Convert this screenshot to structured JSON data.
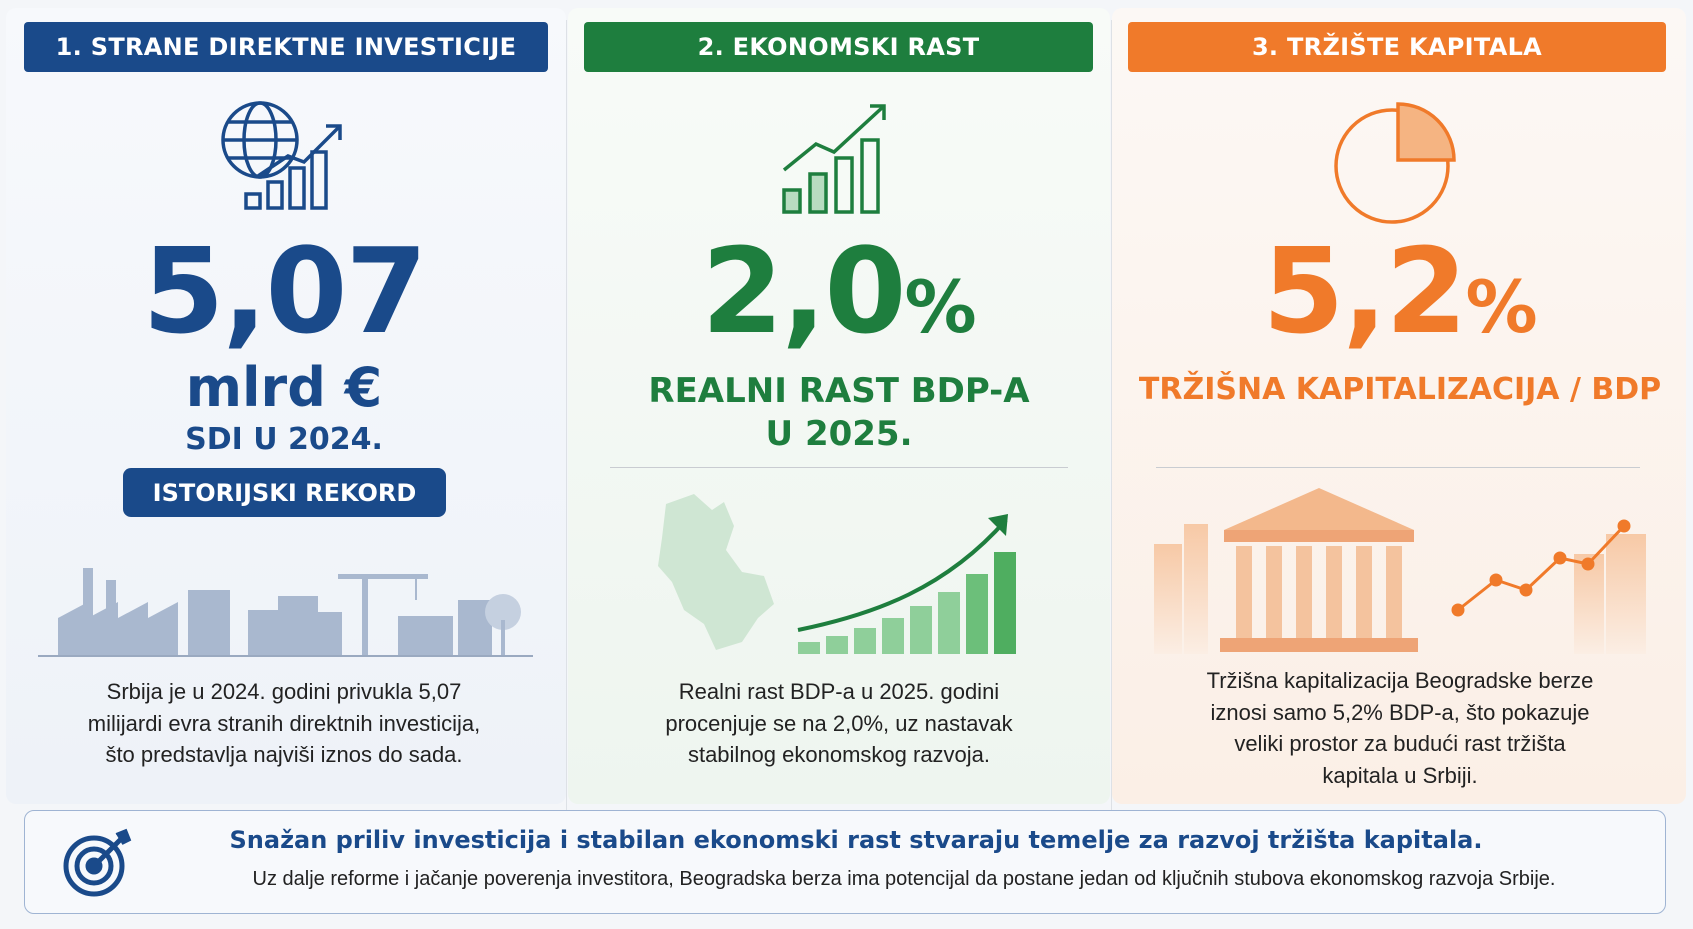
{
  "panels": [
    {
      "header": "1. STRANE DIREKTNE INVESTICIJE",
      "value": "5,07",
      "unit": "mlrd €",
      "label": "SDI U 2024.",
      "badge": "ISTORIJSKI REKORD",
      "text": [
        "Srbija je u 2024. godini privukla 5,07",
        "milijardi evra stranih direktnih investicija,",
        "što predstavlja najviši iznos do sada."
      ]
    },
    {
      "header": "2. EKONOMSKI RAST",
      "value": "2,0",
      "unit": "%",
      "label": [
        "REALNI RAST BDP-A",
        "U 2025."
      ],
      "text": [
        "Realni rast BDP-a u 2025. godini",
        "procenjuje se na 2,0%, uz nastavak",
        "stabilnog ekonomskog razvoja."
      ]
    },
    {
      "header": "3. TRŽIŠTE KAPITALA",
      "value": "5,2",
      "unit": "%",
      "label": "TRŽIŠNA KAPITALIZACIJA / BDP",
      "text": [
        "Tržišna kapitalizacija Beogradske berze",
        "iznosi samo 5,2% BDP-a, što pokazuje",
        "veliki prostor za budući rast tržišta",
        "kapitala u Srbiji."
      ]
    }
  ],
  "footer": {
    "title": "Snažan priliv investicija i stabilan ekonomski rast stvaraju temelje za razvoj tržišta kapitala.",
    "subtitle": "Uz dalje reforme i jačanje poverenja investitora, Beogradska berza ima potencijal da postane jedan od ključnih stubova ekonomskog razvoja Srbije."
  }
}
